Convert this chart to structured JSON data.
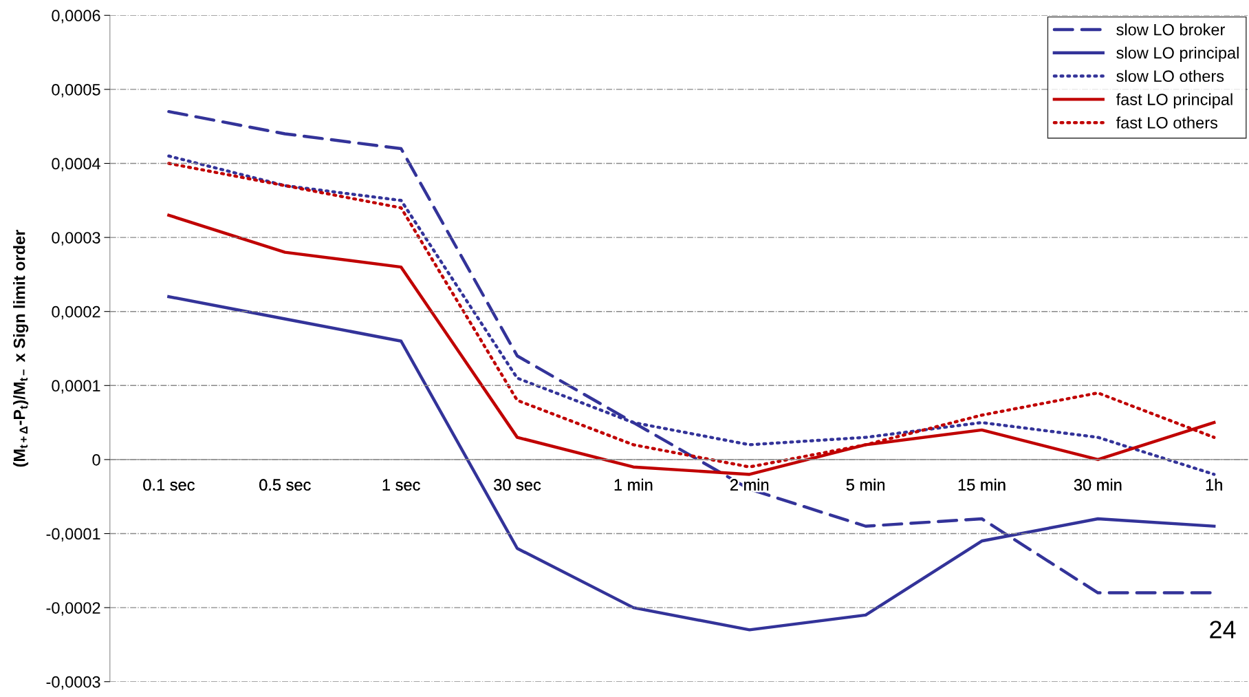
{
  "chart_data": {
    "type": "line",
    "ylabel": "(M$_{t+Δ}$-P$_{t}$)/M$_{t−}$ x Sign limit order",
    "categories": [
      "0.1 sec",
      "0.5 sec",
      "1 sec",
      "30 sec",
      "1 min",
      "2 min",
      "5 min",
      "15 min",
      "30 min",
      "1h"
    ],
    "series": [
      {
        "name": "slow LO broker",
        "color": "#333399",
        "line_style": "dashed",
        "values": [
          0.00047,
          0.00044,
          0.00042,
          0.00014,
          5e-05,
          -4e-05,
          -9e-05,
          -8e-05,
          -0.00018,
          -0.00018
        ]
      },
      {
        "name": "slow LO principal",
        "color": "#333399",
        "line_style": "solid",
        "values": [
          0.00022,
          0.00019,
          0.00016,
          -0.00012,
          -0.0002,
          -0.00023,
          -0.00021,
          -0.00011,
          -8e-05,
          -9e-05
        ]
      },
      {
        "name": "slow LO others",
        "color": "#333399",
        "line_style": "dotted",
        "values": [
          0.00041,
          0.00037,
          0.00035,
          0.00011,
          5e-05,
          2e-05,
          3e-05,
          5e-05,
          3e-05,
          -2e-05
        ]
      },
      {
        "name": "fast LO principal",
        "color": "#c00000",
        "line_style": "solid",
        "values": [
          0.00033,
          0.00028,
          0.00026,
          3e-05,
          -1e-05,
          -2e-05,
          2e-05,
          4e-05,
          0,
          5e-05
        ]
      },
      {
        "name": "fast LO others",
        "color": "#c00000",
        "line_style": "dotted",
        "values": [
          0.0004,
          0.00037,
          0.00034,
          8e-05,
          2e-05,
          -1e-05,
          2e-05,
          6e-05,
          9e-05,
          3e-05
        ]
      }
    ],
    "ylim": [
      -0.0003,
      0.0006
    ],
    "yticks": [
      {
        "value": -0.0003,
        "label": "-0,0003"
      },
      {
        "value": -0.0002,
        "label": "-0,0002"
      },
      {
        "value": -0.0001,
        "label": "-0,0001"
      },
      0,
      {
        "value": 0.0001,
        "label": "0,0001"
      },
      {
        "value": 0.0002,
        "label": "0,0002"
      },
      {
        "value": 0.0003,
        "label": "0,0003"
      },
      {
        "value": 0.0004,
        "label": "0,0004"
      },
      {
        "value": 0.0005,
        "label": "0,0005"
      },
      {
        "value": 0.0006,
        "label": "0,0006"
      }
    ],
    "grid": "y",
    "legend": "top right",
    "marker": "none",
    "annotations": [
      "24"
    ]
  }
}
